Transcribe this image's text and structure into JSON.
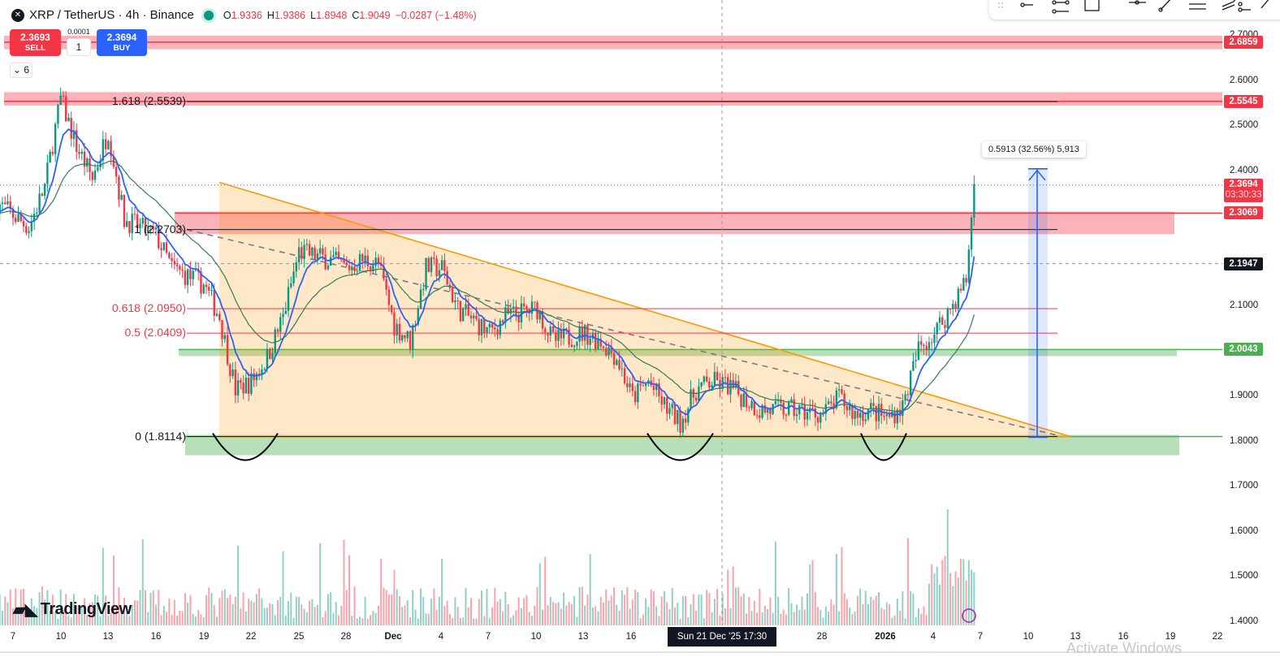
{
  "header": {
    "symbol": "XRP",
    "quote": "TetherUS",
    "interval": "4h",
    "exchange": "Binance",
    "title": "XRP / TetherUS · 4h · Binance",
    "open_label": "O",
    "open": "1.9336",
    "high_label": "H",
    "high": "1.9386",
    "low_label": "L",
    "low": "1.8948",
    "close_label": "C",
    "close": "1.9049",
    "change": "−0.0287 (−1.48%)"
  },
  "trade": {
    "sell_price": "2.3693",
    "sell_label": "SELL",
    "buy_price": "2.3694",
    "buy_label": "BUY",
    "spread": "0.0001",
    "quantity": "1"
  },
  "indicators_toggle": {
    "label": "6"
  },
  "measure_label": "0.5913 (32.56%) 5,913",
  "brand": "TradingView",
  "crosshair_time": "Sun 21 Dec '25   17:30",
  "watermark": "Activate Windows",
  "colors": {
    "up": "#089981",
    "down": "#f23645",
    "ma_fast": "#2962ff",
    "ma_slow": "#2e7d5b",
    "triangle": "#ff9800",
    "resistance": "#f23645",
    "support": "#4caf50"
  },
  "chart_data": {
    "type": "candlestick",
    "ylim": [
      1.4,
      2.7
    ],
    "y_ticks": [
      "2.7000",
      "2.6000",
      "2.5000",
      "2.4000",
      "2.1000",
      "1.9000",
      "1.8000",
      "1.7000",
      "1.6000",
      "1.5000",
      "1.4000"
    ],
    "x_ticks": [
      "7",
      "10",
      "13",
      "16",
      "19",
      "22",
      "25",
      "28",
      "Dec",
      "4",
      "7",
      "10",
      "13",
      "16",
      "28",
      "2026",
      "4",
      "7",
      "10",
      "13",
      "16",
      "19",
      "22"
    ],
    "price_path": [
      [
        "2025-11-06",
        2.33
      ],
      [
        "2025-11-08",
        2.275
      ],
      [
        "2025-11-09",
        2.365
      ],
      [
        "2025-11-10",
        2.56
      ],
      [
        "2025-11-11",
        2.455
      ],
      [
        "2025-11-12",
        2.383
      ],
      [
        "2025-11-13",
        2.49
      ],
      [
        "2025-11-14",
        2.293
      ],
      [
        "2025-11-16",
        2.257
      ],
      [
        "2025-11-17",
        2.185
      ],
      [
        "2025-11-18",
        2.167
      ],
      [
        "2025-11-19",
        2.149
      ],
      [
        "2025-11-20",
        2.077
      ],
      [
        "2025-11-21",
        1.915
      ],
      [
        "2025-11-22",
        1.933
      ],
      [
        "2025-11-23",
        1.987
      ],
      [
        "2025-11-24",
        2.077
      ],
      [
        "2025-11-25",
        2.221
      ],
      [
        "2025-11-27",
        2.203
      ],
      [
        "2025-11-28",
        2.185
      ],
      [
        "2025-11-29",
        2.203
      ],
      [
        "2025-11-30",
        2.194
      ],
      [
        "2025-12-01",
        2.059
      ],
      [
        "2025-12-02",
        2.023
      ],
      [
        "2025-12-03",
        2.185
      ],
      [
        "2025-12-04",
        2.185
      ],
      [
        "2025-12-05",
        2.095
      ],
      [
        "2025-12-07",
        2.041
      ],
      [
        "2025-12-08",
        2.077
      ],
      [
        "2025-12-10",
        2.095
      ],
      [
        "2025-12-11",
        2.023
      ],
      [
        "2025-12-13",
        2.041
      ],
      [
        "2025-12-14",
        2.023
      ],
      [
        "2025-12-15",
        1.987
      ],
      [
        "2025-12-16",
        1.897
      ],
      [
        "2025-12-17",
        1.933
      ],
      [
        "2025-12-18",
        1.879
      ],
      [
        "2025-12-19",
        1.843
      ],
      [
        "2025-12-20",
        1.915
      ],
      [
        "2025-12-21",
        1.933
      ],
      [
        "2025-12-22",
        1.924
      ],
      [
        "2025-12-23",
        1.897
      ],
      [
        "2025-12-24",
        1.87
      ],
      [
        "2025-12-26",
        1.87
      ],
      [
        "2025-12-28",
        1.861
      ],
      [
        "2025-12-29",
        1.897
      ],
      [
        "2025-12-30",
        1.861
      ],
      [
        "2025-12-31",
        1.87
      ],
      [
        "2026-01-01",
        1.852
      ],
      [
        "2026-01-02",
        1.879
      ],
      [
        "2026-01-03",
        2.005
      ],
      [
        "2026-01-04",
        2.041
      ],
      [
        "2026-01-05",
        2.095
      ],
      [
        "2026-01-06",
        2.158
      ],
      [
        "2026-01-06T12",
        2.369
      ]
    ],
    "price_labels": [
      {
        "value": "2.6859",
        "color": "#f23645"
      },
      {
        "value": "2.5545",
        "color": "#f23645"
      },
      {
        "value": "2.3694",
        "sub": "03:30:33",
        "color": "#f23645"
      },
      {
        "value": "2.3069",
        "color": "#f23645"
      },
      {
        "value": "2.1947",
        "color": "#131722"
      },
      {
        "value": "2.0043",
        "color": "#4caf50"
      }
    ],
    "fib_levels": [
      {
        "label": "1.618 (2.5539)",
        "price": 2.5539,
        "color": "#131722"
      },
      {
        "label": "1 (2.2703)",
        "price": 2.2703,
        "color": "#131722"
      },
      {
        "label": "0.618 (2.0950)",
        "price": 2.095,
        "color": "#f23645"
      },
      {
        "label": "0.5 (2.0409)",
        "price": 2.0409,
        "color": "#f23645"
      },
      {
        "label": "0 (1.8114)",
        "price": 1.8114,
        "color": "#131722"
      }
    ],
    "zones": [
      {
        "kind": "resistance",
        "from": 2.67,
        "to": 2.7,
        "line": 2.6859
      },
      {
        "kind": "resistance",
        "from": 2.545,
        "to": 2.575,
        "line": 2.5545
      },
      {
        "kind": "resistance",
        "from": 2.26,
        "to": 2.31,
        "line": 2.3069
      },
      {
        "kind": "support",
        "from": 1.99,
        "to": 2.005,
        "line": 2.0043
      },
      {
        "kind": "support",
        "from": 1.77,
        "to": 1.815,
        "line": 1.8114
      }
    ],
    "last_price": 2.3694,
    "crosshair_price": 2.1947
  }
}
